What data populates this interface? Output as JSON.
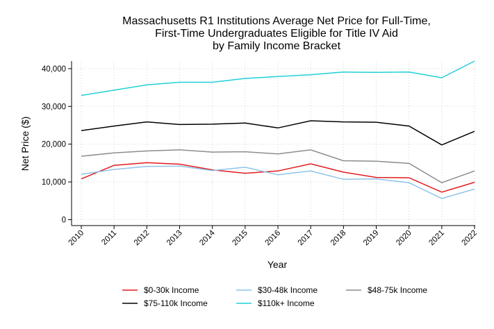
{
  "chart_data": {
    "type": "line",
    "title": [
      "Massachusetts R1 Institutions Average Net Price for Full-Time,",
      "First-Time Undergraduates Eligible for Title IV Aid",
      "by Family Income Bracket"
    ],
    "xlabel": "Year",
    "ylabel": "Net Price ($)",
    "x": [
      2010,
      2011,
      2012,
      2013,
      2014,
      2015,
      2016,
      2017,
      2018,
      2019,
      2020,
      2021,
      2022
    ],
    "x_tick_labels": [
      "2010",
      "2011",
      "2012",
      "2013",
      "2014",
      "2015",
      "2016",
      "2017",
      "2018",
      "2019",
      "2020",
      "2021",
      "2022"
    ],
    "ylim": [
      0,
      43000
    ],
    "y_ticks": [
      0,
      10000,
      20000,
      30000,
      40000
    ],
    "y_tick_labels": [
      "0",
      "10,000",
      "20,000",
      "30,000",
      "40,000"
    ],
    "grid": true,
    "legend_position": "bottom",
    "series": [
      {
        "name": "$0-30k Income",
        "color": "#e31a1c",
        "values": [
          10800,
          14400,
          15100,
          14700,
          13200,
          12300,
          12900,
          14800,
          12600,
          11200,
          11100,
          7300,
          9900
        ]
      },
      {
        "name": "$30-48k Income",
        "color": "#8fc3ea",
        "values": [
          12000,
          13300,
          14100,
          14200,
          13000,
          13900,
          11900,
          12900,
          10700,
          10800,
          9800,
          5600,
          8100
        ]
      },
      {
        "name": "$48-75k Income",
        "color": "#8c8c8c",
        "values": [
          16800,
          17700,
          18200,
          18500,
          17900,
          18000,
          17400,
          18500,
          15600,
          15500,
          14900,
          9800,
          12900
        ]
      },
      {
        "name": "$75-110k Income",
        "color": "#000000",
        "values": [
          23600,
          24800,
          25900,
          25200,
          25300,
          25600,
          24300,
          26200,
          25900,
          25800,
          24800,
          19800,
          23400
        ]
      },
      {
        "name": "$110k+ Income",
        "color": "#1fd0d8",
        "values": [
          32900,
          34300,
          35700,
          36400,
          36400,
          37400,
          37900,
          38400,
          39100,
          39000,
          39100,
          37600,
          42000
        ]
      }
    ]
  }
}
